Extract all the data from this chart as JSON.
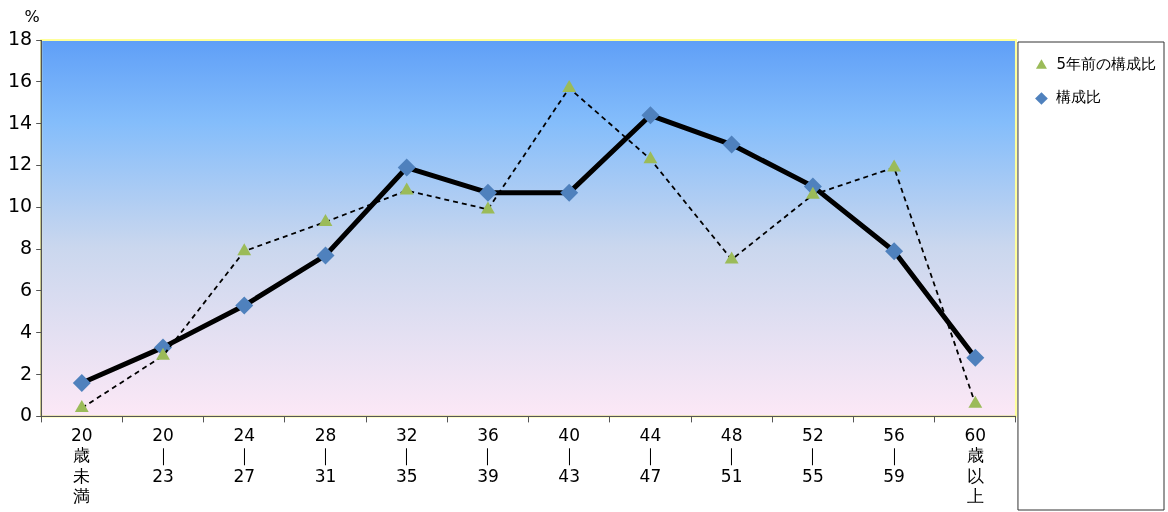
{
  "chart_data": {
    "type": "line",
    "ylabel": "%",
    "categories": [
      "20歳未満",
      "20｜23",
      "24｜27",
      "28｜31",
      "32｜35",
      "36｜39",
      "40｜43",
      "44｜47",
      "48｜51",
      "52｜55",
      "56｜59",
      "60歳以上"
    ],
    "series": [
      {
        "name": "構成比",
        "color": "#000000",
        "colors": [
          "#4f81bd",
          "#4f81bd",
          "#4f81bd",
          "#4f81bd",
          "#4f81bd",
          "#4f81bd",
          "#4f81bd",
          "#4f81bd",
          "#4f81bd",
          "#4f81bd",
          "#4f81bd",
          "#4f81bd"
        ],
        "marker": "diamond",
        "line_style": "solid",
        "values": [
          1.6,
          3.3,
          5.3,
          7.7,
          11.9,
          10.7,
          10.7,
          14.4,
          13.0,
          11.0,
          7.9,
          2.8
        ]
      },
      {
        "name": "5年前の構成比",
        "color": "#000000",
        "colors": [
          "#9bbb59",
          "#9bbb59",
          "#9bbb59",
          "#9bbb59",
          "#9bbb59",
          "#9bbb59",
          "#9bbb59",
          "#9bbb59",
          "#9bbb59",
          "#9bbb59",
          "#9bbb59",
          "#9bbb59"
        ],
        "marker": "triangle",
        "line_style": "dashed",
        "values": [
          0.4,
          2.9,
          7.9,
          9.3,
          10.8,
          9.9,
          15.7,
          12.3,
          7.5,
          10.6,
          11.9,
          0.6
        ]
      }
    ],
    "ylim": [
      0,
      18
    ],
    "yticks": [
      0,
      2,
      4,
      6,
      8,
      10,
      12,
      14,
      16,
      18
    ],
    "grid": false,
    "legend": "top right"
  }
}
